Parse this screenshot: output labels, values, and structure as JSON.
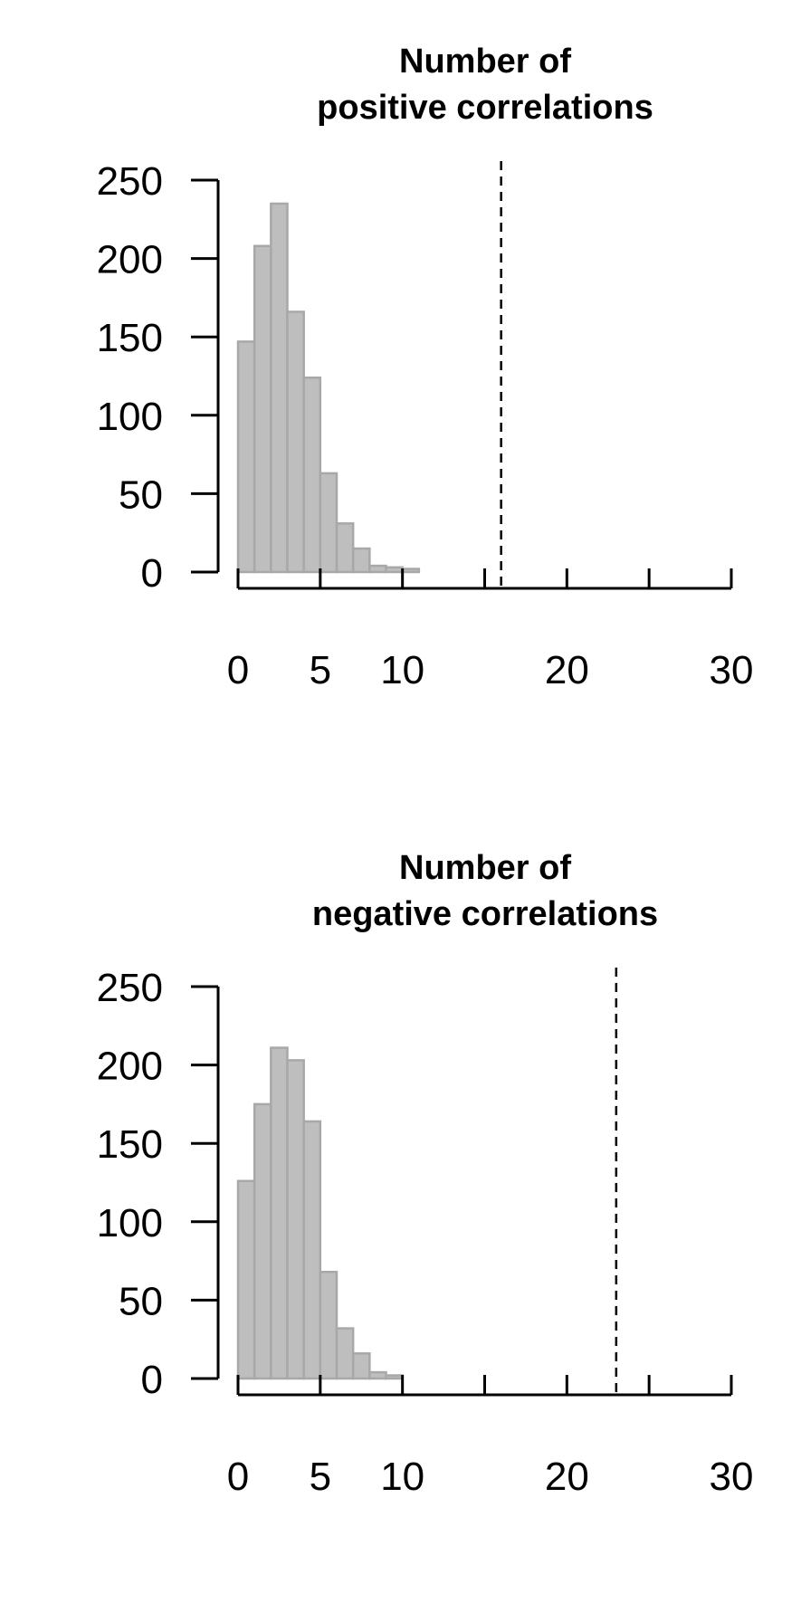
{
  "chart_data": [
    {
      "type": "bar",
      "title": [
        "Number of",
        "positive correlations"
      ],
      "xlabel": "",
      "ylabel": "",
      "bin_width": 1,
      "bin_starts": [
        0,
        1,
        2,
        3,
        4,
        5,
        6,
        7,
        8,
        9,
        10
      ],
      "values": [
        147,
        208,
        235,
        166,
        124,
        63,
        31,
        15,
        4,
        3,
        2
      ],
      "reference_line": 16,
      "xlim": [
        0,
        30
      ],
      "ylim": [
        0,
        250
      ],
      "x_ticks": [
        0,
        5,
        10,
        15,
        20,
        25,
        30
      ],
      "x_tick_labels": [
        "0",
        "5",
        "10",
        "",
        "20",
        "",
        "30"
      ],
      "y_ticks": [
        0,
        50,
        100,
        150,
        200,
        250
      ],
      "y_tick_labels": [
        "0",
        "50",
        "100",
        "150",
        "200",
        "250"
      ],
      "bar_fill": "#bebebe",
      "bar_stroke": "#a8a8a8"
    },
    {
      "type": "bar",
      "title": [
        "Number of",
        "negative correlations"
      ],
      "xlabel": "",
      "ylabel": "",
      "bin_width": 1,
      "bin_starts": [
        0,
        1,
        2,
        3,
        4,
        5,
        6,
        7,
        8,
        9
      ],
      "values": [
        126,
        175,
        211,
        203,
        164,
        68,
        32,
        16,
        4,
        2
      ],
      "reference_line": 23,
      "xlim": [
        0,
        30
      ],
      "ylim": [
        0,
        250
      ],
      "x_ticks": [
        0,
        5,
        10,
        15,
        20,
        25,
        30
      ],
      "x_tick_labels": [
        "0",
        "5",
        "10",
        "",
        "20",
        "",
        "30"
      ],
      "y_ticks": [
        0,
        50,
        100,
        150,
        200,
        250
      ],
      "y_tick_labels": [
        "0",
        "50",
        "100",
        "150",
        "200",
        "250"
      ],
      "bar_fill": "#bebebe",
      "bar_stroke": "#a8a8a8"
    }
  ]
}
